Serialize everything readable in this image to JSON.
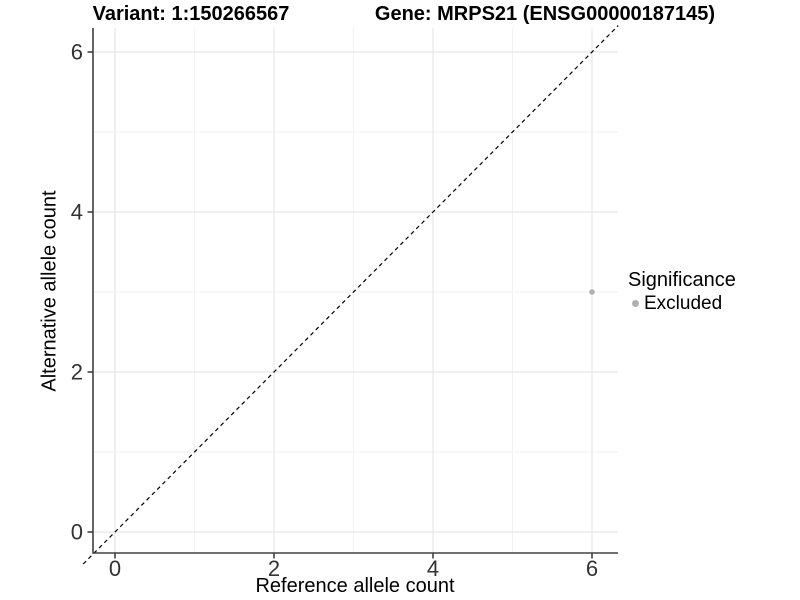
{
  "chart_data": {
    "type": "scatter",
    "title_left": "Variant: 1:150266567",
    "title_right": "Gene: MRPS21 (ENSG00000187145)",
    "xlabel": "Reference allele count",
    "ylabel": "Alternative allele count",
    "x_ticks": [
      0,
      2,
      4,
      6
    ],
    "y_ticks": [
      0,
      2,
      4,
      6
    ],
    "xlim": [
      -0.35,
      6.35
    ],
    "ylim": [
      -0.3,
      6.3
    ],
    "grid": "major and minor gridlines on",
    "points": [
      {
        "x": 6,
        "y": 3,
        "significance": "Excluded",
        "color": "#b0b0b0"
      }
    ],
    "identity_line": {
      "slope": 1,
      "intercept": 0,
      "style": "dashed",
      "color": "#000000"
    },
    "legend": {
      "position": "right",
      "title": "Significance",
      "entries": [
        {
          "label": "Excluded",
          "color": "#b0b0b0"
        }
      ]
    },
    "colors": {
      "grid_major": "#e7e7e7",
      "grid_minor": "#f2f2f2",
      "axis": "#404040",
      "tick_text": "#333333",
      "background": "#ffffff"
    }
  }
}
